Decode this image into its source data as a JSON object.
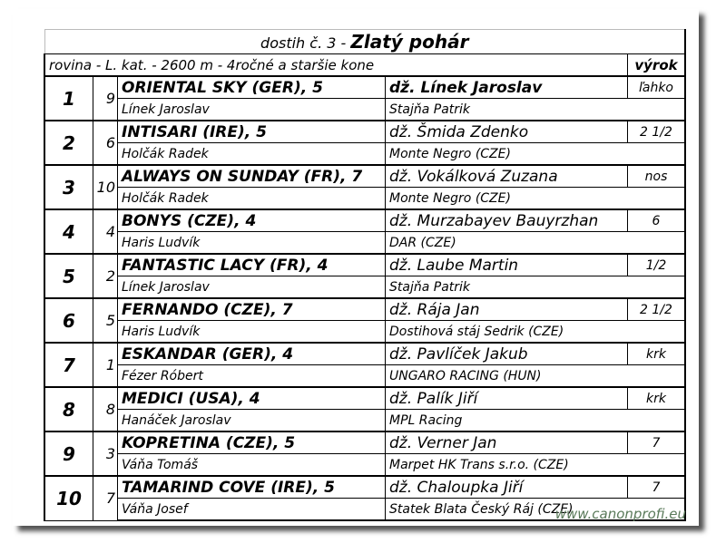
{
  "title_prefix": "dostih č. 3 -",
  "title": "Zlatý pohár",
  "subtitle": "rovina - L. kat. - 2600 m - 4ročné a staršie kone",
  "result_header": "výrok",
  "rows": [
    {
      "pos": "1",
      "num": "9",
      "horse": "ORIENTAL SKY (GER), 5",
      "jockey": "dž. Línek Jaroslav",
      "result": "ľahko",
      "trainer": "Línek Jaroslav",
      "owner": "Stajňa Patrik"
    },
    {
      "pos": "2",
      "num": "6",
      "horse": "INTISARI (IRE), 5",
      "jockey": "dž. Šmida Zdenko",
      "result": "2 1/2",
      "trainer": "Holčák Radek",
      "owner": "Monte Negro (CZE)"
    },
    {
      "pos": "3",
      "num": "10",
      "horse": "ALWAYS ON SUNDAY (FR), 7",
      "jockey": "dž. Vokálková Zuzana",
      "result": "nos",
      "trainer": "Holčák Radek",
      "owner": "Monte Negro (CZE)"
    },
    {
      "pos": "4",
      "num": "4",
      "horse": "BONYS (CZE), 4",
      "jockey": "dž. Murzabayev Bauyrzhan",
      "result": "6",
      "trainer": "Haris Ludvík",
      "owner": "DAR (CZE)"
    },
    {
      "pos": "5",
      "num": "2",
      "horse": "FANTASTIC LACY (FR), 4",
      "jockey": "dž. Laube Martin",
      "result": "1/2",
      "trainer": "Línek Jaroslav",
      "owner": "Stajňa Patrik"
    },
    {
      "pos": "6",
      "num": "5",
      "horse": "FERNANDO (CZE), 7",
      "jockey": "dž. Rája Jan",
      "result": "2 1/2",
      "trainer": "Haris Ludvík",
      "owner": "Dostihová stáj Sedrik (CZE)"
    },
    {
      "pos": "7",
      "num": "1",
      "horse": "ESKANDAR (GER), 4",
      "jockey": "dž. Pavlíček Jakub",
      "result": "krk",
      "trainer": "Fézer Róbert",
      "owner": "UNGARO RACING (HUN)"
    },
    {
      "pos": "8",
      "num": "8",
      "horse": "MEDICI (USA), 4",
      "jockey": "dž. Palík Jiří",
      "result": "krk",
      "trainer": "Hanáček Jaroslav",
      "owner": "MPL Racing"
    },
    {
      "pos": "9",
      "num": "3",
      "horse": "KOPRETINA (CZE), 5",
      "jockey": "dž. Verner Jan",
      "result": "7",
      "trainer": "Váňa Tomáš",
      "owner": "Marpet HK Trans s.r.o. (CZE)"
    },
    {
      "pos": "10",
      "num": "7",
      "horse": "TAMARIND COVE (IRE), 5",
      "jockey": "dž. Chaloupka Jiří",
      "result": "7",
      "trainer": "Váňa Josef",
      "owner": "Statek Blata Český Ráj (CZE)"
    }
  ],
  "watermark": "www.canonprofi.eu"
}
